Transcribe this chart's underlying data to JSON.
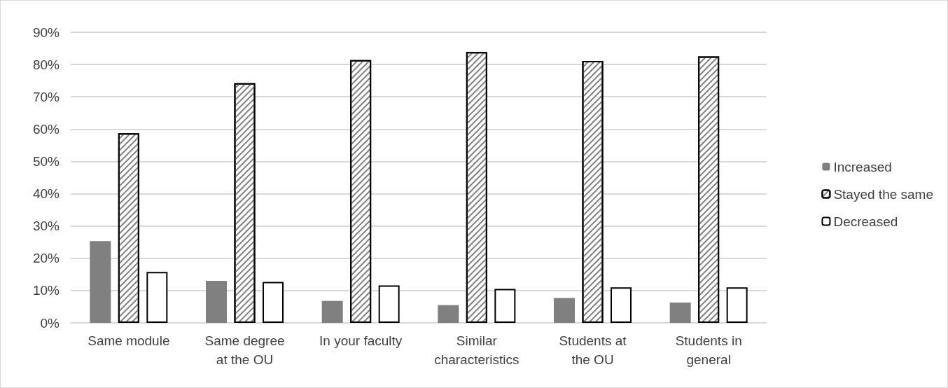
{
  "chart_data": {
    "type": "bar",
    "categories": [
      "Same module",
      "Same degree\nat the OU",
      "In your faculty",
      "Similar\ncharacteristics",
      "Students at\nthe OU",
      "Students in\ngeneral"
    ],
    "series": [
      {
        "name": "Increased",
        "color": "#808080",
        "values": [
          25.3,
          13.0,
          6.8,
          5.5,
          7.7,
          6.3
        ]
      },
      {
        "name": "Stayed the same",
        "color": "#ffffff",
        "values": [
          58.7,
          74.2,
          81.4,
          83.9,
          81.1,
          82.5
        ]
      },
      {
        "name": "Decreased",
        "color": "#ffffff",
        "values": [
          15.8,
          12.7,
          11.6,
          10.5,
          11.0,
          11.0
        ]
      }
    ],
    "ylim": [
      0,
      90
    ],
    "yticks": [
      {
        "value": 0,
        "label": "0%"
      },
      {
        "value": 10,
        "label": "10%"
      },
      {
        "value": 20,
        "label": "20%"
      },
      {
        "value": 30,
        "label": "30%"
      },
      {
        "value": 40,
        "label": "40%"
      },
      {
        "value": 50,
        "label": "50%"
      },
      {
        "value": 60,
        "label": "60%"
      },
      {
        "value": 70,
        "label": "70%"
      },
      {
        "value": 80,
        "label": "80%"
      },
      {
        "value": 90,
        "label": "90%"
      }
    ],
    "grid": "y",
    "legend": "right"
  }
}
